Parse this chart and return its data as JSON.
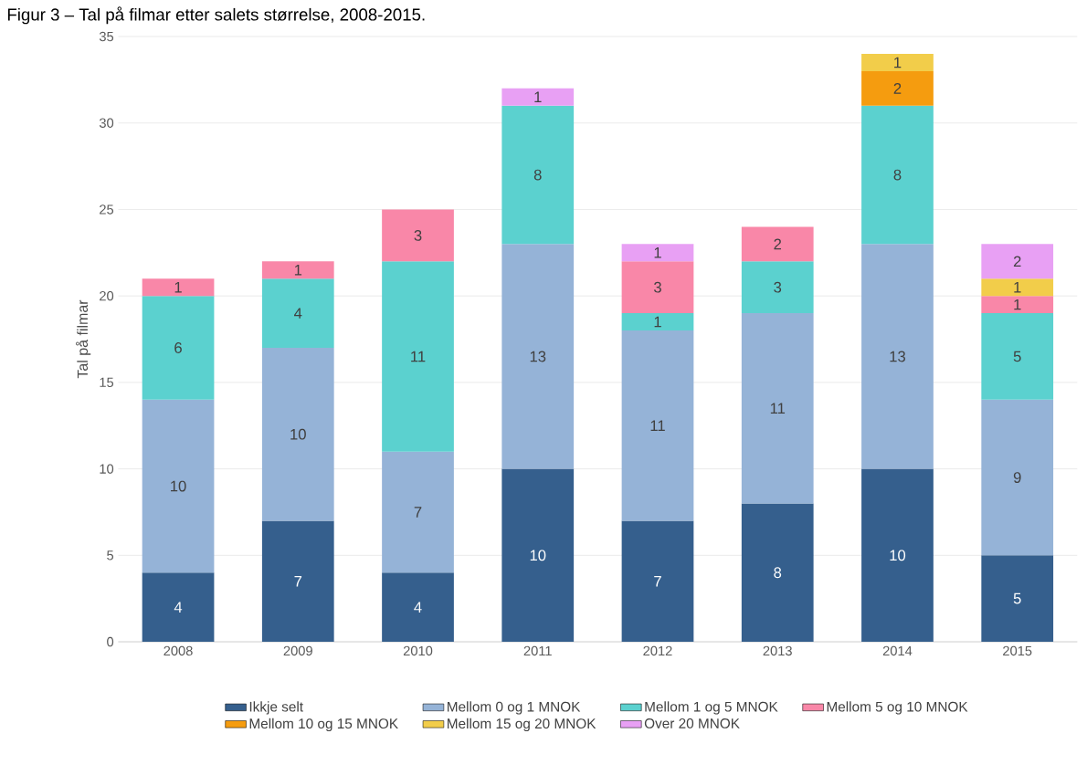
{
  "chart_data": {
    "type": "bar",
    "title": "Figur 3 – Tal på filmar etter salets størrelse, 2008-2015.",
    "ylabel": "Tal på filmar",
    "categories": [
      "2008",
      "2009",
      "2010",
      "2011",
      "2012",
      "2013",
      "2014",
      "2015"
    ],
    "stacked": true,
    "data_labels": true,
    "grid": "y",
    "legend": "bottom",
    "ylim": [
      0,
      35
    ],
    "yticks": [
      0,
      5,
      10,
      15,
      20,
      25,
      30,
      35
    ],
    "series": [
      {
        "name": "Ikkje selt",
        "color": "#355f8d",
        "values": [
          4,
          7,
          4,
          10,
          7,
          8,
          10,
          5
        ]
      },
      {
        "name": "Mellom 0 og 1 MNOK",
        "color": "#95b3d7",
        "values": [
          10,
          10,
          7,
          13,
          11,
          11,
          13,
          9
        ]
      },
      {
        "name": "Mellom 1 og 5 MNOK",
        "color": "#5bd1cf",
        "values": [
          6,
          4,
          11,
          8,
          1,
          3,
          8,
          5
        ]
      },
      {
        "name": "Mellom 5 og 10 MNOK",
        "color": "#f987a8",
        "values": [
          1,
          1,
          3,
          null,
          3,
          2,
          null,
          1
        ]
      },
      {
        "name": "Mellom 10 og 15 MNOK",
        "color": "#f59c0f",
        "values": [
          null,
          null,
          null,
          null,
          null,
          null,
          2,
          null
        ]
      },
      {
        "name": "Mellom 15 og 20 MNOK",
        "color": "#f2cd4a",
        "values": [
          null,
          null,
          null,
          null,
          null,
          null,
          1,
          1
        ]
      },
      {
        "name": "Over 20 MNOK",
        "color": "#e8a0f4",
        "values": [
          null,
          null,
          null,
          1,
          1,
          null,
          null,
          2
        ]
      }
    ]
  }
}
